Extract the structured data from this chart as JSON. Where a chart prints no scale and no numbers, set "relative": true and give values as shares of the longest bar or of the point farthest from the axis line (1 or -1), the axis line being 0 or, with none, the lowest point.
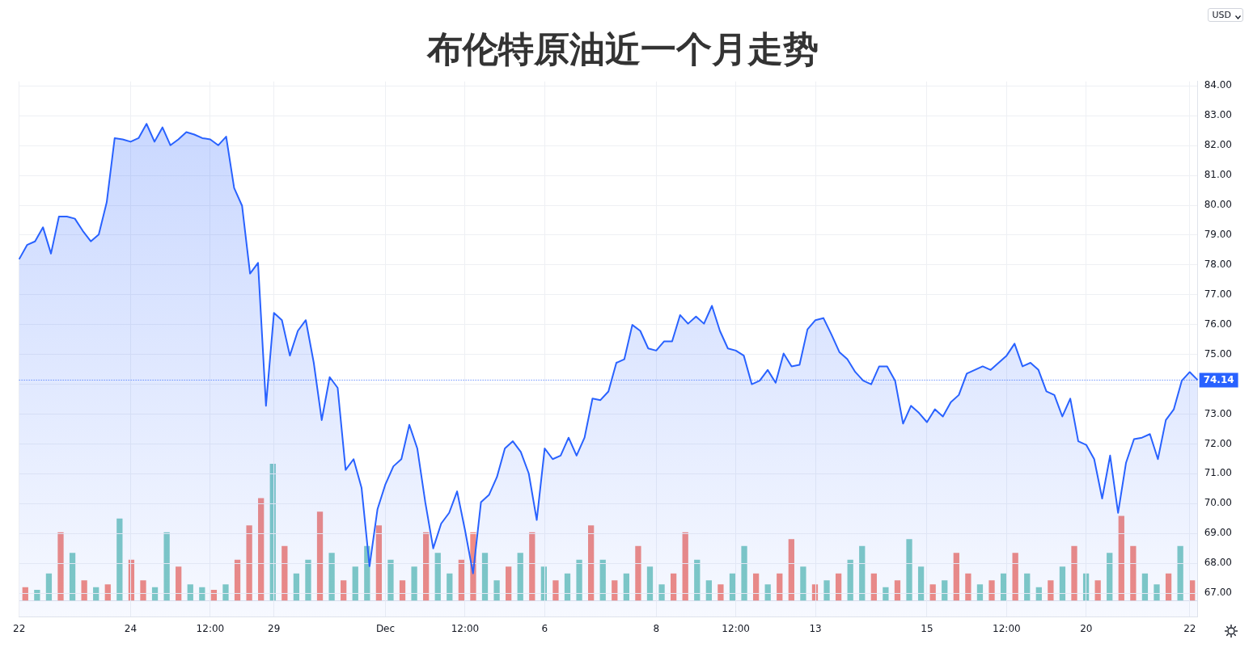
{
  "chart_data": [
    {
      "type": "area",
      "title": "布伦特原油近一个月走势",
      "annotations": [
        "USD"
      ],
      "categories": [
        "22",
        null,
        null,
        null,
        null,
        null,
        null,
        null,
        null,
        null,
        null,
        null,
        null,
        null,
        "24",
        null,
        null,
        null,
        null,
        null,
        null,
        null,
        null,
        null,
        "12:00",
        null,
        null,
        null,
        null,
        null,
        null,
        null,
        "29",
        null,
        null,
        null,
        null,
        null,
        null,
        null,
        null,
        null,
        null,
        null,
        null,
        null,
        "Dec",
        null,
        null,
        null,
        null,
        null,
        null,
        null,
        null,
        null,
        "12:00",
        null,
        null,
        null,
        null,
        null,
        null,
        null,
        null,
        null,
        "6",
        null,
        null,
        null,
        null,
        null,
        null,
        null,
        null,
        null,
        null,
        null,
        null,
        null,
        "8",
        null,
        null,
        null,
        null,
        null,
        null,
        null,
        null,
        null,
        "12:00",
        null,
        null,
        null,
        null,
        null,
        null,
        null,
        null,
        null,
        "13",
        null,
        null,
        null,
        null,
        null,
        null,
        null,
        null,
        null,
        null,
        null,
        null,
        null,
        "15",
        null,
        null,
        null,
        null,
        null,
        null,
        null,
        null,
        null,
        "12:00",
        null,
        null,
        null,
        null,
        null,
        null,
        null,
        null,
        null,
        "20",
        null,
        null,
        null,
        null,
        null,
        null,
        null,
        null,
        null,
        null,
        null,
        null,
        "22",
        null
      ],
      "ylim": [
        66.2,
        84.15
      ],
      "yticks": [
        {
          "value": 67,
          "label": "67.00"
        },
        {
          "value": 68,
          "label": "68.00"
        },
        {
          "value": 69,
          "label": "69.00"
        },
        {
          "value": 70,
          "label": "70.00"
        },
        {
          "value": 71,
          "label": "71.00"
        },
        {
          "value": 72,
          "label": "72.00"
        },
        {
          "value": 73,
          "label": "73.00"
        },
        {
          "value": 74,
          "label": null
        },
        {
          "value": 75,
          "label": "75.00"
        },
        {
          "value": 76,
          "label": "76.00"
        },
        {
          "value": 77,
          "label": "77.00"
        },
        {
          "value": 78,
          "label": "78.00"
        },
        {
          "value": 79,
          "label": "79.00"
        },
        {
          "value": 80,
          "label": "80.00"
        },
        {
          "value": 81,
          "label": "81.00"
        },
        {
          "value": 82,
          "label": "82.00"
        },
        {
          "value": 83,
          "label": "83.00"
        },
        {
          "value": 84,
          "label": "84.00"
        }
      ],
      "grid": true,
      "legend": false,
      "marker": "none",
      "line_style": "solid",
      "ref_lines": [
        {
          "axis": "y",
          "value": 74.14,
          "label": "74.14",
          "color": "#2962ff",
          "line_style": "dotted"
        }
      ],
      "series": [
        {
          "color": "#2962ff",
          "values": [
            78.19,
            78.67,
            78.79,
            79.26,
            78.38,
            79.62,
            79.62,
            79.55,
            79.14,
            78.79,
            79.02,
            80.1,
            82.25,
            82.21,
            82.13,
            82.25,
            82.73,
            82.13,
            82.61,
            82.01,
            82.21,
            82.45,
            82.37,
            82.25,
            82.21,
            82.01,
            82.3,
            80.58,
            79.98,
            77.71,
            78.07,
            73.28,
            76.39,
            76.15,
            74.96,
            75.79,
            76.15,
            74.72,
            72.8,
            74.24,
            73.88,
            71.13,
            71.49,
            70.53,
            67.9,
            69.81,
            70.65,
            71.25,
            71.49,
            72.64,
            71.85,
            70.05,
            68.5,
            69.33,
            69.69,
            70.41,
            69.1,
            67.66,
            70.05,
            70.29,
            70.89,
            71.85,
            72.09,
            71.73,
            71.01,
            69.45,
            71.85,
            71.49,
            71.61,
            72.21,
            71.61,
            72.21,
            73.52,
            73.47,
            73.76,
            74.72,
            74.84,
            75.99,
            75.79,
            75.2,
            75.13,
            75.44,
            75.44,
            76.32,
            76.03,
            76.27,
            76.03,
            76.63,
            75.79,
            75.2,
            75.13,
            74.96,
            74.0,
            74.12,
            74.48,
            74.05,
            75.03,
            74.6,
            74.65,
            75.84,
            76.15,
            76.22,
            75.67,
            75.08,
            74.84,
            74.41,
            74.12,
            74.0,
            74.6,
            74.6,
            74.12,
            72.68,
            73.28,
            73.04,
            72.73,
            73.16,
            72.92,
            73.4,
            73.64,
            74.36,
            74.48,
            74.6,
            74.48,
            74.72,
            74.96,
            75.36,
            74.6,
            74.72,
            74.48,
            73.76,
            73.64,
            72.92,
            73.52,
            72.09,
            71.97,
            71.49,
            70.17,
            71.61,
            69.69,
            71.37,
            72.16,
            72.21,
            72.33,
            71.49,
            72.8,
            73.16,
            74.12,
            74.41,
            74.14
          ]
        }
      ]
    },
    {
      "type": "bar",
      "relative": true,
      "legend": false,
      "grid": false,
      "categories": [
        null,
        null,
        null,
        null,
        null,
        null,
        null,
        null,
        null,
        null,
        null,
        null,
        null,
        null,
        null,
        null,
        null,
        null,
        null,
        null,
        null,
        null,
        null,
        null,
        null,
        null,
        null,
        null,
        null,
        null,
        null,
        null,
        null,
        null,
        null,
        null,
        null,
        null,
        null,
        null,
        null,
        null,
        null,
        null,
        null,
        null,
        null,
        null,
        null,
        null,
        null,
        null,
        null,
        null,
        null,
        null,
        null,
        null,
        null,
        null,
        null,
        null,
        null,
        null,
        null,
        null,
        null,
        null,
        null,
        null,
        null,
        null,
        null,
        null,
        null,
        null,
        null,
        null,
        null,
        null,
        null,
        null,
        null,
        null,
        null,
        null,
        null,
        null,
        null,
        null,
        null,
        null,
        null,
        null,
        null,
        null,
        null,
        null,
        null,
        null
      ],
      "values": [
        0.1,
        0.08,
        0.2,
        0.5,
        0.35,
        0.15,
        0.1,
        0.12,
        0.6,
        0.3,
        0.15,
        0.1,
        0.5,
        0.25,
        0.12,
        0.1,
        0.08,
        0.12,
        0.3,
        0.55,
        0.75,
        1.0,
        0.4,
        0.2,
        0.3,
        0.65,
        0.35,
        0.15,
        0.25,
        0.4,
        0.55,
        0.3,
        0.15,
        0.25,
        0.5,
        0.35,
        0.2,
        0.3,
        0.5,
        0.35,
        0.15,
        0.25,
        0.35,
        0.5,
        0.25,
        0.15,
        0.2,
        0.3,
        0.55,
        0.3,
        0.15,
        0.2,
        0.4,
        0.25,
        0.12,
        0.2,
        0.5,
        0.3,
        0.15,
        0.12,
        0.2,
        0.4,
        0.2,
        0.12,
        0.2,
        0.45,
        0.25,
        0.12,
        0.15,
        0.2,
        0.3,
        0.4,
        0.2,
        0.1,
        0.15,
        0.45,
        0.25,
        0.12,
        0.15,
        0.35,
        0.2,
        0.12,
        0.15,
        0.2,
        0.35,
        0.2,
        0.1,
        0.15,
        0.25,
        0.4,
        0.2,
        0.15,
        0.35,
        0.62,
        0.4,
        0.2,
        0.12,
        0.2,
        0.4,
        0.15
      ],
      "colors": [
        "#f28b82",
        "#80cbc4",
        "#80cbc4",
        "#f28b82",
        "#80cbc4",
        "#f28b82",
        "#80cbc4",
        "#f28b82",
        "#80cbc4",
        "#f28b82",
        "#f28b82",
        "#80cbc4",
        "#80cbc4",
        "#f28b82",
        "#80cbc4",
        "#80cbc4",
        "#f28b82",
        "#80cbc4",
        "#f28b82",
        "#f28b82",
        "#f28b82",
        "#80cbc4",
        "#f28b82",
        "#80cbc4",
        "#80cbc4",
        "#f28b82",
        "#80cbc4",
        "#f28b82",
        "#80cbc4",
        "#80cbc4",
        "#f28b82",
        "#80cbc4",
        "#f28b82",
        "#80cbc4",
        "#f28b82",
        "#80cbc4",
        "#80cbc4",
        "#f28b82",
        "#f28b82",
        "#80cbc4",
        "#80cbc4",
        "#f28b82",
        "#80cbc4",
        "#f28b82",
        "#80cbc4",
        "#f28b82",
        "#80cbc4",
        "#80cbc4",
        "#f28b82",
        "#80cbc4",
        "#f28b82",
        "#80cbc4",
        "#f28b82",
        "#80cbc4",
        "#80cbc4",
        "#f28b82",
        "#f28b82",
        "#80cbc4",
        "#80cbc4",
        "#f28b82",
        "#80cbc4",
        "#80cbc4",
        "#f28b82",
        "#80cbc4",
        "#f28b82",
        "#f28b82",
        "#80cbc4",
        "#f28b82",
        "#80cbc4",
        "#f28b82",
        "#80cbc4",
        "#80cbc4",
        "#f28b82",
        "#80cbc4",
        "#f28b82",
        "#80cbc4",
        "#80cbc4",
        "#f28b82",
        "#80cbc4",
        "#f28b82",
        "#f28b82",
        "#80cbc4",
        "#f28b82",
        "#80cbc4",
        "#f28b82",
        "#80cbc4",
        "#80cbc4",
        "#f28b82",
        "#80cbc4",
        "#f28b82",
        "#80cbc4",
        "#f28b82",
        "#80cbc4",
        "#f28b82",
        "#f28b82",
        "#80cbc4",
        "#80cbc4",
        "#f28b82",
        "#80cbc4",
        "#f28b82"
      ]
    }
  ]
}
